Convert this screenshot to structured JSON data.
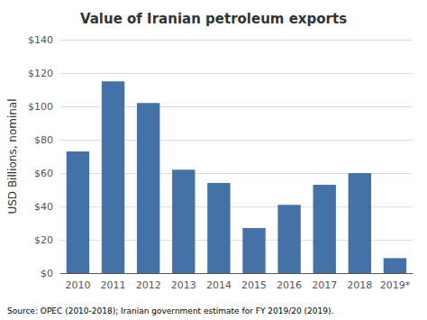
{
  "chart_data": {
    "type": "bar",
    "title": "Value of Iranian petroleum exports",
    "ylabel": "USD Billions, nominal",
    "annotations": [
      "Source: OPEC (2010-2018); Iranian government estimate for FY 2019/20 (2019)."
    ],
    "categories": [
      "2010",
      "2011",
      "2012",
      "2013",
      "2014",
      "2015",
      "2016",
      "2017",
      "2018",
      "2019*"
    ],
    "values": [
      73,
      115,
      102,
      62,
      54,
      27,
      41,
      53,
      60,
      9
    ],
    "color": "#4472a8",
    "ylim": [
      0,
      140
    ],
    "yticks": [
      {
        "value": 0,
        "label": "$0"
      },
      {
        "value": 20,
        "label": "$20"
      },
      {
        "value": 40,
        "label": "$40"
      },
      {
        "value": 60,
        "label": "$60"
      },
      {
        "value": 80,
        "label": "$80"
      },
      {
        "value": 100,
        "label": "$100"
      },
      {
        "value": 120,
        "label": "$120"
      },
      {
        "value": 140,
        "label": "$140"
      }
    ],
    "grid": true
  }
}
